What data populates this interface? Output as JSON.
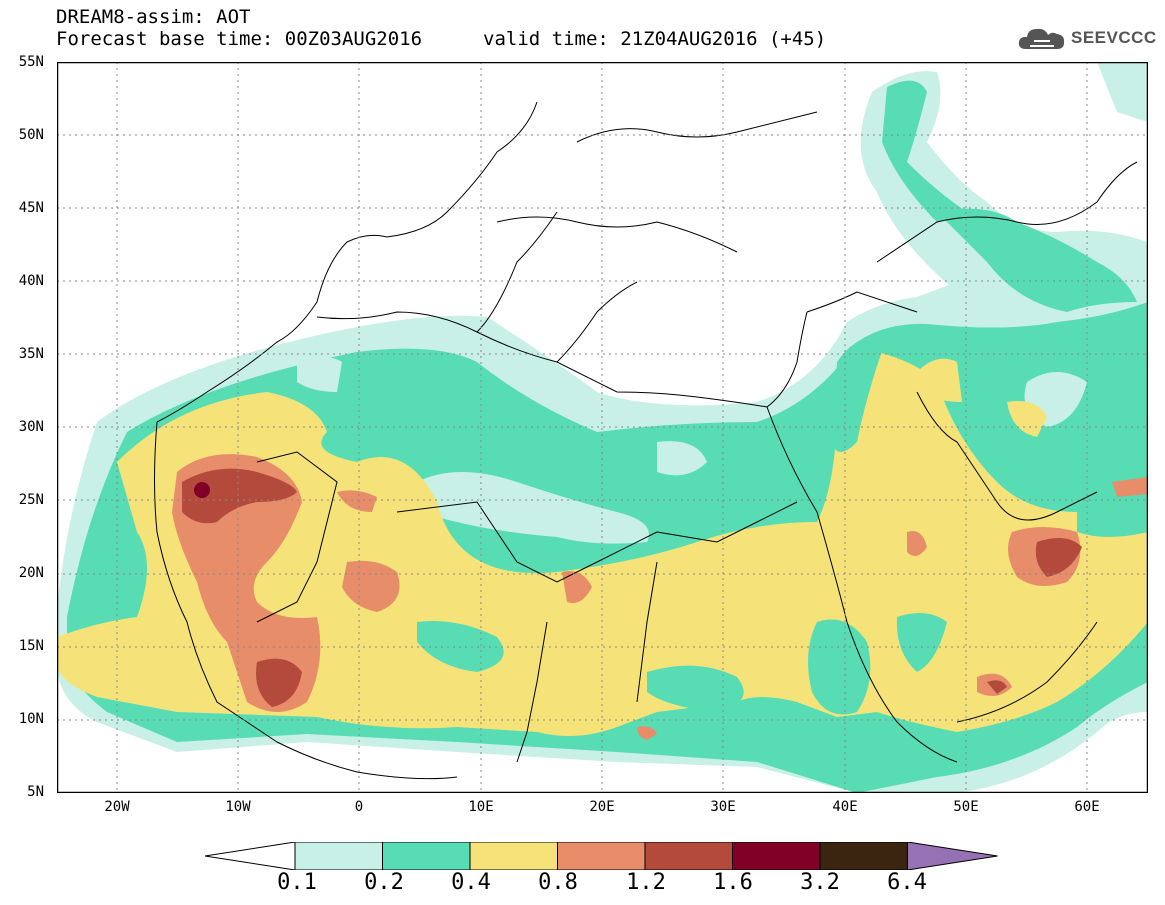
{
  "header": {
    "title": "DREAM8-assim: AOT",
    "base_time": "Forecast base time: 00Z03AUG2016",
    "valid_time": "valid time: 21Z04AUG2016 (+45)",
    "logo_text": "SEEVCCC",
    "logo_icon": "cloud-icon"
  },
  "map": {
    "variable": "Aerosol optical thickness",
    "lon_range": [
      -25,
      65
    ],
    "lat_range": [
      5,
      55
    ],
    "lat_ticks": [
      "55N",
      "50N",
      "45N",
      "40N",
      "35N",
      "30N",
      "25N",
      "20N",
      "15N",
      "10N",
      "5N"
    ],
    "lon_ticks": [
      "20W",
      "10W",
      "0",
      "10E",
      "20E",
      "30E",
      "40E",
      "50E",
      "60E"
    ]
  },
  "legend": {
    "levels": [
      "0.1",
      "0.2",
      "0.4",
      "0.8",
      "1.2",
      "1.6",
      "3.2",
      "6.4"
    ],
    "colors": [
      "#c8f0e6",
      "#57dcb4",
      "#f5e37a",
      "#e88d6a",
      "#b44a3c",
      "#800028",
      "#3a2510",
      "#9671b4"
    ],
    "extend": "both"
  }
}
